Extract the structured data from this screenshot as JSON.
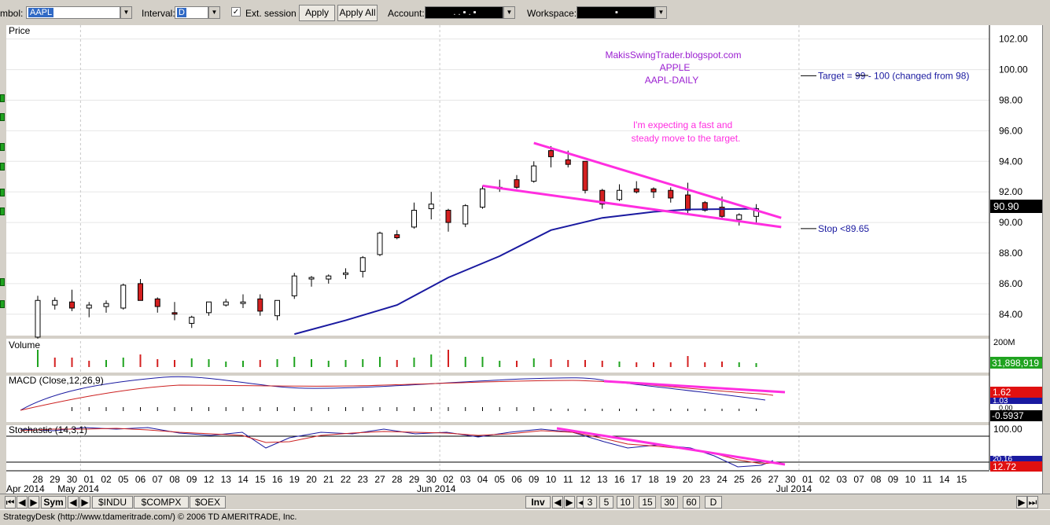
{
  "toolbar": {
    "symbol_label": "mbol:",
    "symbol_value": "AAPL",
    "interval_label": "Interval:",
    "interval_value": "D",
    "ext_session_label": "Ext. session",
    "ext_session_checked": "✓",
    "apply_label": "Apply",
    "apply_all_label": "Apply All",
    "account_label": "Account:",
    "account_value": ". . ▪ . ▪",
    "workspace_label": "Workspace:",
    "workspace_value": "▪"
  },
  "panels": {
    "price_label": "Price",
    "volume_label": "Volume",
    "macd_label": "MACD (Close,12,26,9)",
    "stochastic_label": "Stochastic (14,3,1)",
    "volume_scale_top": "200M",
    "volume_value": "31,898,919",
    "macd_value_1": "1.62",
    "macd_value_2": "1.03",
    "macd_value_3": "0.00",
    "macd_value_4": "-0.5937",
    "stoch_scale_top": "100.00",
    "stoch_value_1": "20.16",
    "stoch_value_2": "12.72"
  },
  "annotations": {
    "blog_line1": "MakisSwingTrader.blogspot.com",
    "blog_line2": "APPLE",
    "blog_line3": "AAPL-DAILY",
    "expect_line1": "I'm expecting a fast and",
    "expect_line2": "steady move to the target.",
    "target_text": "Target = 99 - 100 (changed from 98)",
    "stop_text": "Stop <89.65"
  },
  "chart_data": {
    "type": "candlestick",
    "symbol": "AAPL",
    "interval": "D",
    "title": "Price",
    "ylim": [
      82.6,
      102.6
    ],
    "y_ticks": [
      "102.00",
      "100.00",
      "98.00",
      "96.00",
      "94.00",
      "92.00",
      "90.00",
      "88.00",
      "86.00",
      "84.00"
    ],
    "last_price": "90.90",
    "date_labels": [
      "28",
      "29",
      "30",
      "01",
      "02",
      "05",
      "06",
      "07",
      "08",
      "09",
      "12",
      "13",
      "14",
      "15",
      "16",
      "19",
      "20",
      "21",
      "22",
      "23",
      "27",
      "28",
      "29",
      "30",
      "02",
      "03",
      "04",
      "05",
      "06",
      "09",
      "10",
      "11",
      "12",
      "13",
      "16",
      "17",
      "18",
      "19",
      "20",
      "23",
      "24",
      "25",
      "26",
      "27",
      "30",
      "01",
      "02",
      "03",
      "07",
      "08",
      "09",
      "10",
      "11",
      "14",
      "15"
    ],
    "month_labels": [
      {
        "label": "Apr 2014",
        "index": 0
      },
      {
        "label": "May 2014",
        "index": 3
      },
      {
        "label": "Jun 2014",
        "index": 24
      },
      {
        "label": "Jul 2014",
        "index": 45
      }
    ],
    "candles": [
      {
        "o": 82.5,
        "h": 85.2,
        "l": 82.4,
        "c": 84.9
      },
      {
        "o": 84.6,
        "h": 85.1,
        "l": 84.3,
        "c": 84.9
      },
      {
        "o": 84.8,
        "h": 85.6,
        "l": 84.2,
        "c": 84.4
      },
      {
        "o": 84.4,
        "h": 84.8,
        "l": 83.8,
        "c": 84.6
      },
      {
        "o": 84.5,
        "h": 84.9,
        "l": 84.1,
        "c": 84.7
      },
      {
        "o": 84.4,
        "h": 86.0,
        "l": 84.3,
        "c": 85.9
      },
      {
        "o": 86.0,
        "h": 86.3,
        "l": 84.9,
        "c": 84.9
      },
      {
        "o": 85.0,
        "h": 85.1,
        "l": 84.1,
        "c": 84.5
      },
      {
        "o": 84.1,
        "h": 84.8,
        "l": 83.6,
        "c": 84.0
      },
      {
        "o": 83.4,
        "h": 83.9,
        "l": 83.1,
        "c": 83.8
      },
      {
        "o": 84.1,
        "h": 84.8,
        "l": 83.9,
        "c": 84.8
      },
      {
        "o": 84.6,
        "h": 85.0,
        "l": 84.5,
        "c": 84.8
      },
      {
        "o": 84.7,
        "h": 85.3,
        "l": 84.4,
        "c": 84.8
      },
      {
        "o": 85.0,
        "h": 85.3,
        "l": 83.9,
        "c": 84.2
      },
      {
        "o": 83.9,
        "h": 84.9,
        "l": 83.6,
        "c": 84.9
      },
      {
        "o": 85.2,
        "h": 86.7,
        "l": 85.0,
        "c": 86.5
      },
      {
        "o": 86.3,
        "h": 86.5,
        "l": 85.8,
        "c": 86.4
      },
      {
        "o": 86.3,
        "h": 86.6,
        "l": 86.0,
        "c": 86.5
      },
      {
        "o": 86.6,
        "h": 87.0,
        "l": 86.3,
        "c": 86.7
      },
      {
        "o": 86.8,
        "h": 87.8,
        "l": 86.4,
        "c": 87.7
      },
      {
        "o": 87.9,
        "h": 89.4,
        "l": 87.8,
        "c": 89.3
      },
      {
        "o": 89.2,
        "h": 89.5,
        "l": 88.9,
        "c": 89.0
      },
      {
        "o": 89.7,
        "h": 91.3,
        "l": 89.6,
        "c": 90.8
      },
      {
        "o": 90.9,
        "h": 92.0,
        "l": 90.2,
        "c": 91.2
      },
      {
        "o": 90.8,
        "h": 90.9,
        "l": 89.4,
        "c": 90.0
      },
      {
        "o": 89.9,
        "h": 91.2,
        "l": 89.7,
        "c": 91.1
      },
      {
        "o": 91.0,
        "h": 92.4,
        "l": 90.9,
        "c": 92.2
      },
      {
        "o": 92.2,
        "h": 92.8,
        "l": 92.0,
        "c": 92.3
      },
      {
        "o": 92.8,
        "h": 93.1,
        "l": 92.2,
        "c": 92.3
      },
      {
        "o": 92.7,
        "h": 94.0,
        "l": 92.6,
        "c": 93.7
      },
      {
        "o": 94.7,
        "h": 95.0,
        "l": 93.6,
        "c": 94.3
      },
      {
        "o": 94.1,
        "h": 94.7,
        "l": 93.6,
        "c": 93.8
      },
      {
        "o": 94.0,
        "h": 94.0,
        "l": 91.9,
        "c": 92.1
      },
      {
        "o": 92.1,
        "h": 92.2,
        "l": 90.9,
        "c": 91.2
      },
      {
        "o": 91.5,
        "h": 92.5,
        "l": 91.4,
        "c": 92.1
      },
      {
        "o": 92.2,
        "h": 92.7,
        "l": 91.9,
        "c": 92.0
      },
      {
        "o": 92.2,
        "h": 92.3,
        "l": 91.6,
        "c": 92.0
      },
      {
        "o": 92.1,
        "h": 92.3,
        "l": 91.3,
        "c": 91.6
      },
      {
        "o": 91.8,
        "h": 92.6,
        "l": 90.6,
        "c": 90.8
      },
      {
        "o": 91.3,
        "h": 91.4,
        "l": 90.7,
        "c": 90.8
      },
      {
        "o": 91.0,
        "h": 91.7,
        "l": 90.2,
        "c": 90.4
      },
      {
        "o": 90.2,
        "h": 90.6,
        "l": 89.8,
        "c": 90.5
      },
      {
        "o": 90.4,
        "h": 91.2,
        "l": 89.9,
        "c": 90.9
      }
    ],
    "moving_average": [
      {
        "i": 15,
        "v": 82.7
      },
      {
        "i": 18,
        "v": 83.6
      },
      {
        "i": 21,
        "v": 84.6
      },
      {
        "i": 24,
        "v": 86.4
      },
      {
        "i": 27,
        "v": 87.8
      },
      {
        "i": 30,
        "v": 89.5
      },
      {
        "i": 33,
        "v": 90.3
      },
      {
        "i": 36,
        "v": 90.7
      },
      {
        "i": 38,
        "v": 90.85
      },
      {
        "i": 42,
        "v": 90.9
      }
    ],
    "volume": [
      {
        "v": 22,
        "up": true
      },
      {
        "v": 12,
        "up": false
      },
      {
        "v": 12,
        "up": false
      },
      {
        "v": 8,
        "up": false
      },
      {
        "v": 9,
        "up": true
      },
      {
        "v": 12,
        "up": true
      },
      {
        "v": 16,
        "up": false
      },
      {
        "v": 10,
        "up": false
      },
      {
        "v": 9,
        "up": false
      },
      {
        "v": 11,
        "up": true
      },
      {
        "v": 10,
        "up": true
      },
      {
        "v": 7,
        "up": true
      },
      {
        "v": 8,
        "up": true
      },
      {
        "v": 9,
        "up": false
      },
      {
        "v": 10,
        "up": true
      },
      {
        "v": 13,
        "up": true
      },
      {
        "v": 10,
        "up": true
      },
      {
        "v": 8,
        "up": true
      },
      {
        "v": 9,
        "up": true
      },
      {
        "v": 10,
        "up": true
      },
      {
        "v": 13,
        "up": true
      },
      {
        "v": 9,
        "up": false
      },
      {
        "v": 12,
        "up": true
      },
      {
        "v": 16,
        "up": true
      },
      {
        "v": 22,
        "up": false
      },
      {
        "v": 13,
        "up": true
      },
      {
        "v": 13,
        "up": true
      },
      {
        "v": 8,
        "up": true
      },
      {
        "v": 8,
        "up": false
      },
      {
        "v": 11,
        "up": true
      },
      {
        "v": 10,
        "up": false
      },
      {
        "v": 9,
        "up": false
      },
      {
        "v": 9,
        "up": false
      },
      {
        "v": 8,
        "up": false
      },
      {
        "v": 7,
        "up": true
      },
      {
        "v": 6,
        "up": false
      },
      {
        "v": 6,
        "up": false
      },
      {
        "v": 6,
        "up": false
      },
      {
        "v": 14,
        "up": false
      },
      {
        "v": 6,
        "up": false
      },
      {
        "v": 7,
        "up": false
      },
      {
        "v": 6,
        "up": true
      },
      {
        "v": 5,
        "up": true
      }
    ],
    "trendlines": [
      {
        "from": {
          "i": 29,
          "v": 95.2
        },
        "to": {
          "i": 43,
          "v": 90.3
        }
      },
      {
        "from": {
          "i": 26,
          "v": 92.4
        },
        "to": {
          "i": 43,
          "v": 89.7
        }
      }
    ],
    "target_line_value": 99.6,
    "stop_line_value": 89.6
  }
}
